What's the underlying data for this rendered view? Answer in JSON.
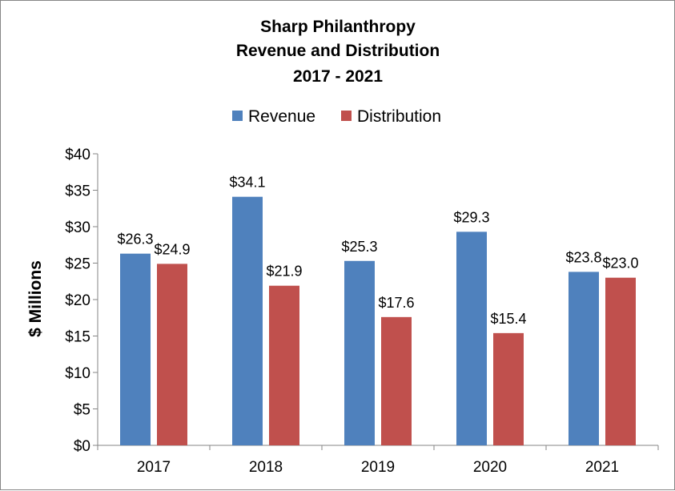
{
  "chart_data": {
    "type": "bar",
    "title_lines": [
      "Sharp Philanthropy",
      "Revenue and Distribution",
      "2017 - 2021"
    ],
    "xlabel": "",
    "ylabel": "$ Millions",
    "categories": [
      "2017",
      "2018",
      "2019",
      "2020",
      "2021"
    ],
    "series": [
      {
        "name": "Revenue",
        "color": "#4f81bd",
        "values": [
          26.3,
          34.1,
          25.3,
          29.3,
          23.8
        ],
        "labels": [
          "$26.3",
          "$34.1",
          "$25.3",
          "$29.3",
          "$23.8"
        ]
      },
      {
        "name": "Distribution",
        "color": "#c0504d",
        "values": [
          24.9,
          21.9,
          17.6,
          15.4,
          23.0
        ],
        "labels": [
          "$24.9",
          "$21.9",
          "$17.6",
          "$15.4",
          "$23.0"
        ]
      }
    ],
    "ylim": [
      0,
      40
    ],
    "yticks": [
      0,
      5,
      10,
      15,
      20,
      25,
      30,
      35,
      40
    ],
    "ytick_labels": [
      "$0",
      "$5",
      "$10",
      "$15",
      "$20",
      "$25",
      "$30",
      "$35",
      "$40"
    ],
    "grid": false,
    "legend_position": "top"
  }
}
